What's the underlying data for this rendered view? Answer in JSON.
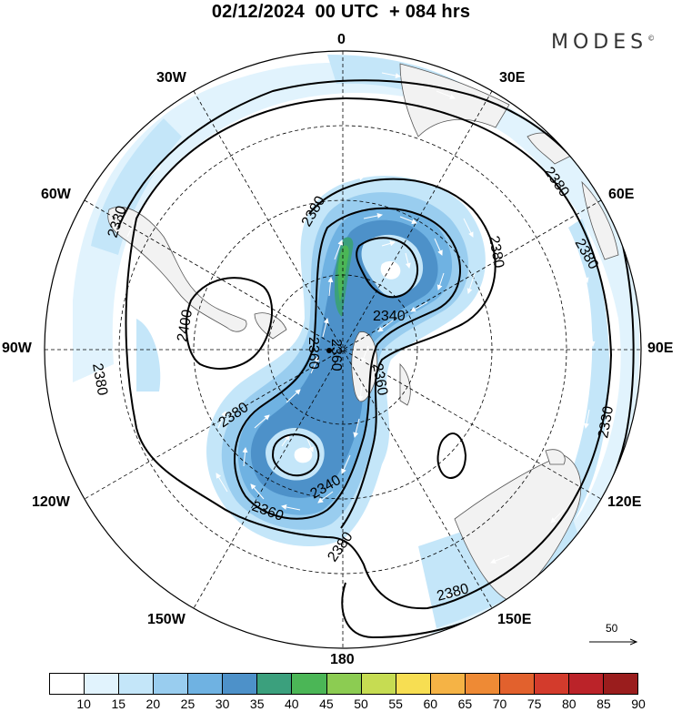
{
  "header": {
    "title": "02/12/2024  00 UTC  + 084 hrs",
    "brand": "MODES",
    "brand_mark": "©"
  },
  "map": {
    "projection": "polar stereographic (South Pole)",
    "longitude_labels": {
      "top": "0",
      "top_right": "30E",
      "upper_right": "60E",
      "right": "90E",
      "lower_right": "120E",
      "bottom_right": "150E",
      "bottom": "180",
      "bottom_left": "150W",
      "lower_left": "120W",
      "left": "90W",
      "upper_left": "60W",
      "top_left": "30W"
    },
    "contour_labels": [
      "2330",
      "2380",
      "2380",
      "2380",
      "2400",
      "2380",
      "2360",
      "2340",
      "2380",
      "2360",
      "2380",
      "2360",
      "2340",
      "2380",
      "2330",
      "2380",
      "2360"
    ],
    "vector_reference": {
      "value": "50"
    }
  },
  "colorbar": {
    "ticks": [
      "10",
      "15",
      "20",
      "25",
      "30",
      "35",
      "40",
      "45",
      "50",
      "55",
      "60",
      "65",
      "70",
      "75",
      "80",
      "85",
      "90"
    ],
    "colors": [
      "#ffffff",
      "#e1f3fd",
      "#c4e6f9",
      "#99cdef",
      "#6fb2e2",
      "#4d91c9",
      "#3ba07d",
      "#4bb656",
      "#8ccc52",
      "#c6dc52",
      "#f7de52",
      "#f5b345",
      "#ee8a35",
      "#e2612d",
      "#d33b2c",
      "#bb2329",
      "#9a1d1d"
    ]
  }
}
